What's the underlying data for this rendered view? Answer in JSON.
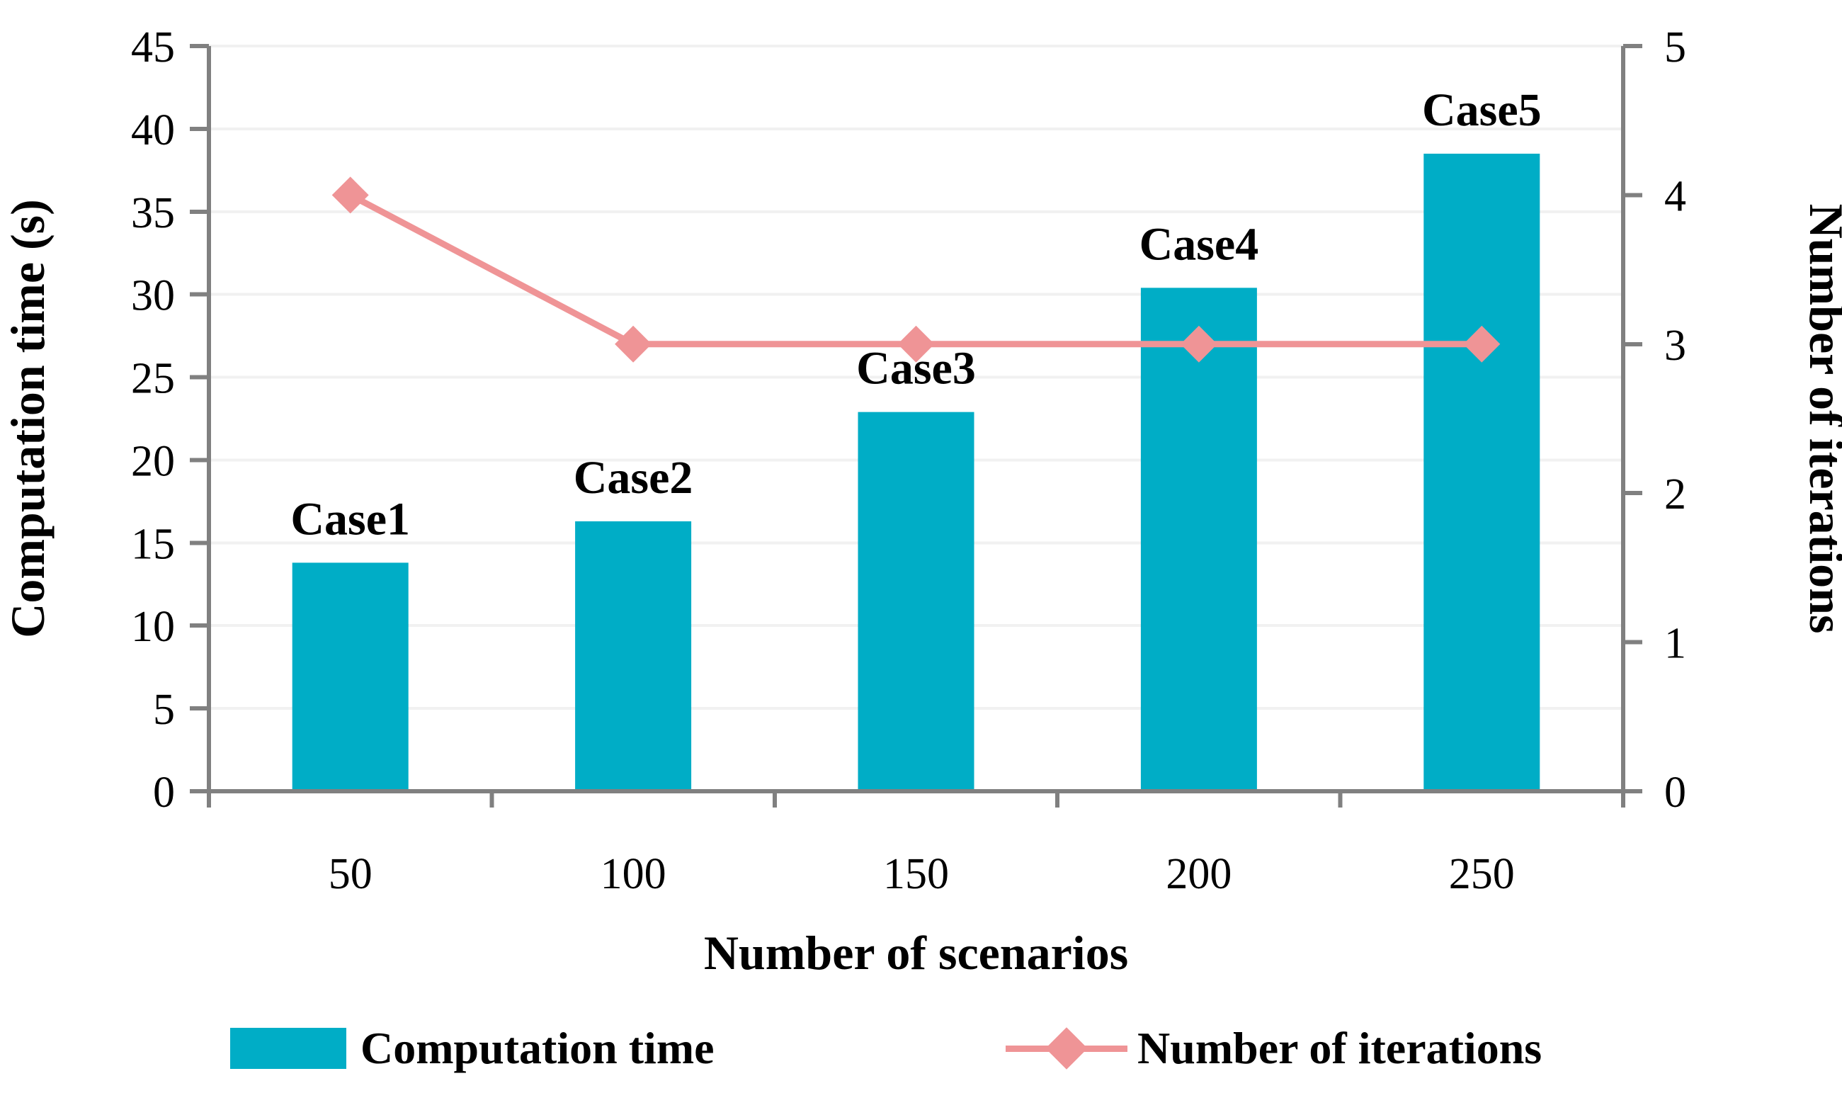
{
  "chart_data": {
    "type": "bar+line",
    "categories": [
      "50",
      "100",
      "150",
      "200",
      "250"
    ],
    "series": [
      {
        "name": "Computation time",
        "type": "bar",
        "axis": "left",
        "values": [
          13.8,
          16.3,
          22.9,
          30.4,
          38.5
        ],
        "point_labels": [
          "Case1",
          "Case2",
          "Case3",
          "Case4",
          "Case5"
        ],
        "color": "#00ADC6",
        "label_color": "#0AA3BD"
      },
      {
        "name": "Number of iterations",
        "type": "line",
        "axis": "right",
        "values": [
          4,
          3,
          3,
          3,
          3
        ],
        "marker": "diamond",
        "color": "#EF9496"
      }
    ],
    "xlabel": "Number of scenarios",
    "left_axis": {
      "label": "Computation time (s)",
      "ticks": [
        "0",
        "5",
        "10",
        "15",
        "20",
        "25",
        "30",
        "35",
        "40",
        "45"
      ],
      "range": [
        0,
        45
      ],
      "tick_step": 5
    },
    "right_axis": {
      "label": "Number of iterations",
      "ticks": [
        "0",
        "1",
        "2",
        "3",
        "4",
        "5"
      ],
      "range": [
        0,
        5
      ],
      "tick_step": 1
    },
    "grid": "horizontal",
    "legend_position": "bottom",
    "colors": {
      "bar": "#00ADC6",
      "line": "#EF9496",
      "case_label": "#0AA3BD",
      "axis": "#808080",
      "gridline": "#F1F1F1",
      "text": "#000000",
      "background": "#FFFFFF"
    }
  }
}
